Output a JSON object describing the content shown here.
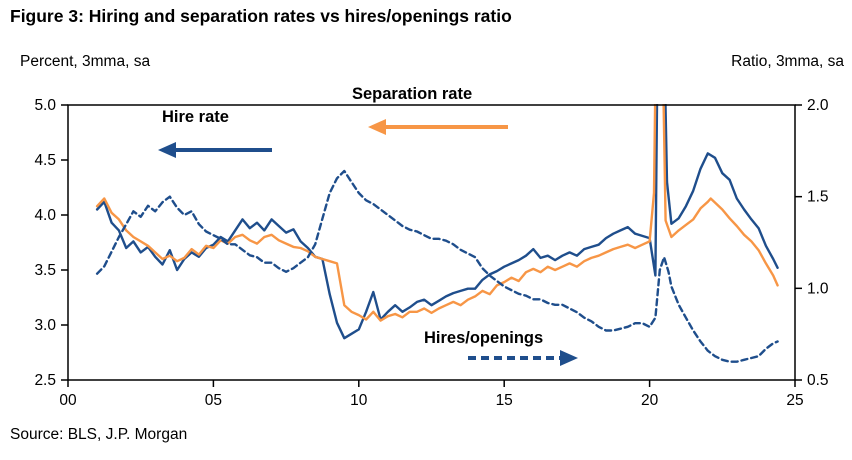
{
  "figure": {
    "title": "Figure 3: Hiring and separation rates vs hires/openings ratio",
    "left_axis_unit": "Percent, 3mma, sa",
    "right_axis_unit": "Ratio, 3mma, sa",
    "source": "Source: BLS, J.P. Morgan"
  },
  "annotations": {
    "hire_rate": {
      "label": "Hire rate"
    },
    "separation_rate": {
      "label": "Separation rate"
    },
    "hires_openings": {
      "label": "Hires/openings"
    }
  },
  "colors": {
    "navy": "#1f4e8c",
    "orange": "#f79646"
  },
  "chart_data": {
    "type": "line",
    "title": "Figure 3: Hiring and separation rates vs hires/openings ratio",
    "xlabel": "",
    "legend": "in-plot text annotations with arrows",
    "grid": false,
    "x_axis": {
      "min": 2000,
      "max": 2025,
      "tick_values": [
        2000,
        2005,
        2010,
        2015,
        2020,
        2025
      ],
      "tick_labels": [
        "00",
        "05",
        "10",
        "15",
        "20",
        "25"
      ]
    },
    "left_axis": {
      "label": "Percent, 3mma, sa",
      "min": 2.5,
      "max": 5.0,
      "tick_values": [
        5.0,
        4.5,
        4.0,
        3.5,
        3.0,
        2.5
      ],
      "tick_labels": [
        "5.0",
        "4.5",
        "4.0",
        "3.5",
        "3.0",
        "2.5"
      ]
    },
    "right_axis": {
      "label": "Ratio, 3mma, sa",
      "min": 0.5,
      "max": 2.0,
      "tick_values": [
        2.0,
        1.5,
        1.0,
        0.5
      ],
      "tick_labels": [
        "2.0",
        "1.5",
        "1.0",
        "0.5"
      ]
    },
    "series": [
      {
        "id": "hire-rate",
        "name": "Hire rate",
        "axis": "left",
        "style": "solid",
        "color": "#1f4e8c",
        "x": [
          2001,
          2001.25,
          2001.5,
          2001.75,
          2002,
          2002.25,
          2002.5,
          2002.75,
          2003,
          2003.25,
          2003.5,
          2003.75,
          2004,
          2004.25,
          2004.5,
          2004.75,
          2005,
          2005.25,
          2005.5,
          2005.75,
          2006,
          2006.25,
          2006.5,
          2006.75,
          2007,
          2007.25,
          2007.5,
          2007.75,
          2008,
          2008.25,
          2008.5,
          2008.75,
          2009,
          2009.25,
          2009.5,
          2009.75,
          2010,
          2010.25,
          2010.5,
          2010.75,
          2011,
          2011.25,
          2011.5,
          2011.75,
          2012,
          2012.25,
          2012.5,
          2012.75,
          2013,
          2013.25,
          2013.5,
          2013.75,
          2014,
          2014.25,
          2014.5,
          2014.75,
          2015,
          2015.25,
          2015.5,
          2015.75,
          2016,
          2016.25,
          2016.5,
          2016.75,
          2017,
          2017.25,
          2017.5,
          2017.75,
          2018,
          2018.25,
          2018.5,
          2018.75,
          2019,
          2019.25,
          2019.5,
          2019.75,
          2020,
          2020.2,
          2020.3,
          2020.45,
          2020.6,
          2020.75,
          2021,
          2021.25,
          2021.5,
          2021.75,
          2022,
          2022.25,
          2022.5,
          2022.75,
          2023,
          2023.25,
          2023.5,
          2023.75,
          2024,
          2024.25,
          2024.4
        ],
        "y": [
          4.05,
          4.12,
          3.93,
          3.86,
          3.7,
          3.76,
          3.66,
          3.71,
          3.62,
          3.55,
          3.68,
          3.5,
          3.6,
          3.66,
          3.62,
          3.7,
          3.73,
          3.8,
          3.76,
          3.86,
          3.96,
          3.88,
          3.93,
          3.86,
          3.96,
          3.9,
          3.84,
          3.87,
          3.76,
          3.7,
          3.62,
          3.6,
          3.28,
          3.02,
          2.88,
          2.92,
          2.96,
          3.12,
          3.3,
          3.05,
          3.12,
          3.18,
          3.12,
          3.16,
          3.21,
          3.23,
          3.18,
          3.22,
          3.26,
          3.29,
          3.31,
          3.33,
          3.33,
          3.41,
          3.46,
          3.49,
          3.53,
          3.56,
          3.59,
          3.63,
          3.69,
          3.61,
          3.63,
          3.59,
          3.63,
          3.66,
          3.63,
          3.69,
          3.71,
          3.73,
          3.79,
          3.83,
          3.86,
          3.89,
          3.83,
          3.81,
          3.79,
          3.45,
          6.3,
          6.3,
          4.3,
          3.92,
          3.97,
          4.08,
          4.22,
          4.42,
          4.56,
          4.52,
          4.38,
          4.32,
          4.15,
          4.05,
          3.96,
          3.88,
          3.72,
          3.6,
          3.52
        ]
      },
      {
        "id": "separation-rate",
        "name": "Separation rate",
        "axis": "left",
        "style": "solid",
        "color": "#f79646",
        "x": [
          2001,
          2001.25,
          2001.5,
          2001.75,
          2002,
          2002.25,
          2002.5,
          2002.75,
          2003,
          2003.25,
          2003.5,
          2003.75,
          2004,
          2004.25,
          2004.5,
          2004.75,
          2005,
          2005.25,
          2005.5,
          2005.75,
          2006,
          2006.25,
          2006.5,
          2006.75,
          2007,
          2007.25,
          2007.5,
          2007.75,
          2008,
          2008.25,
          2008.5,
          2008.75,
          2009,
          2009.25,
          2009.5,
          2009.75,
          2010,
          2010.25,
          2010.5,
          2010.75,
          2011,
          2011.25,
          2011.5,
          2011.75,
          2012,
          2012.25,
          2012.5,
          2012.75,
          2013,
          2013.25,
          2013.5,
          2013.75,
          2014,
          2014.25,
          2014.5,
          2014.75,
          2015,
          2015.25,
          2015.5,
          2015.75,
          2016,
          2016.25,
          2016.5,
          2016.75,
          2017,
          2017.25,
          2017.5,
          2017.75,
          2018,
          2018.25,
          2018.5,
          2018.75,
          2019,
          2019.25,
          2019.5,
          2019.75,
          2020,
          2020.15,
          2020.25,
          2020.4,
          2020.55,
          2020.75,
          2021,
          2021.25,
          2021.5,
          2021.75,
          2022,
          2022.1,
          2022.5,
          2022.75,
          2023,
          2023.25,
          2023.5,
          2023.75,
          2024,
          2024.25,
          2024.4
        ],
        "y": [
          4.08,
          4.15,
          4.02,
          3.96,
          3.86,
          3.8,
          3.76,
          3.72,
          3.66,
          3.6,
          3.63,
          3.58,
          3.61,
          3.69,
          3.64,
          3.72,
          3.7,
          3.77,
          3.74,
          3.8,
          3.82,
          3.77,
          3.74,
          3.8,
          3.82,
          3.77,
          3.74,
          3.71,
          3.7,
          3.67,
          3.62,
          3.6,
          3.58,
          3.56,
          3.18,
          3.12,
          3.09,
          3.05,
          3.12,
          3.04,
          3.08,
          3.1,
          3.07,
          3.12,
          3.12,
          3.15,
          3.11,
          3.15,
          3.18,
          3.21,
          3.18,
          3.23,
          3.26,
          3.31,
          3.28,
          3.36,
          3.39,
          3.43,
          3.4,
          3.48,
          3.51,
          3.48,
          3.53,
          3.5,
          3.53,
          3.56,
          3.53,
          3.58,
          3.61,
          3.63,
          3.66,
          3.69,
          3.71,
          3.73,
          3.7,
          3.73,
          3.76,
          4.2,
          6.3,
          6.3,
          3.95,
          3.8,
          3.86,
          3.91,
          3.96,
          4.06,
          4.12,
          4.15,
          4.05,
          3.97,
          3.9,
          3.82,
          3.76,
          3.68,
          3.56,
          3.45,
          3.36
        ]
      },
      {
        "id": "hires-openings",
        "name": "Hires/openings",
        "axis": "right",
        "style": "dashed",
        "color": "#1f4e8c",
        "x": [
          2001,
          2001.25,
          2001.5,
          2001.75,
          2002,
          2002.25,
          2002.5,
          2002.75,
          2003,
          2003.25,
          2003.5,
          2003.75,
          2004,
          2004.25,
          2004.5,
          2004.75,
          2005,
          2005.25,
          2005.5,
          2005.75,
          2006,
          2006.25,
          2006.5,
          2006.75,
          2007,
          2007.25,
          2007.5,
          2007.75,
          2008,
          2008.25,
          2008.5,
          2008.75,
          2009,
          2009.25,
          2009.5,
          2009.75,
          2010,
          2010.25,
          2010.5,
          2010.75,
          2011,
          2011.25,
          2011.5,
          2011.75,
          2012,
          2012.25,
          2012.5,
          2012.75,
          2013,
          2013.25,
          2013.5,
          2013.75,
          2014,
          2014.25,
          2014.5,
          2014.75,
          2015,
          2015.25,
          2015.5,
          2015.75,
          2016,
          2016.25,
          2016.5,
          2016.75,
          2017,
          2017.25,
          2017.5,
          2017.75,
          2018,
          2018.25,
          2018.5,
          2018.75,
          2019,
          2019.25,
          2019.5,
          2019.75,
          2020,
          2020.2,
          2020.35,
          2020.5,
          2020.65,
          2020.75,
          2021,
          2021.25,
          2021.5,
          2021.75,
          2022,
          2022.25,
          2022.5,
          2022.75,
          2023,
          2023.25,
          2023.5,
          2023.75,
          2024,
          2024.25,
          2024.4
        ],
        "y": [
          1.08,
          1.12,
          1.2,
          1.28,
          1.35,
          1.42,
          1.39,
          1.45,
          1.42,
          1.47,
          1.5,
          1.44,
          1.4,
          1.42,
          1.35,
          1.31,
          1.29,
          1.27,
          1.24,
          1.24,
          1.21,
          1.18,
          1.17,
          1.14,
          1.14,
          1.11,
          1.09,
          1.11,
          1.14,
          1.17,
          1.24,
          1.38,
          1.52,
          1.6,
          1.64,
          1.58,
          1.52,
          1.48,
          1.46,
          1.43,
          1.4,
          1.37,
          1.34,
          1.32,
          1.31,
          1.29,
          1.27,
          1.27,
          1.26,
          1.24,
          1.21,
          1.19,
          1.17,
          1.11,
          1.07,
          1.04,
          1.01,
          0.99,
          0.97,
          0.96,
          0.94,
          0.94,
          0.92,
          0.91,
          0.91,
          0.89,
          0.87,
          0.84,
          0.82,
          0.79,
          0.77,
          0.77,
          0.78,
          0.79,
          0.81,
          0.81,
          0.79,
          0.84,
          1.1,
          1.17,
          1.09,
          1.01,
          0.91,
          0.84,
          0.77,
          0.71,
          0.66,
          0.63,
          0.61,
          0.6,
          0.6,
          0.61,
          0.62,
          0.63,
          0.67,
          0.7,
          0.71
        ]
      }
    ]
  }
}
